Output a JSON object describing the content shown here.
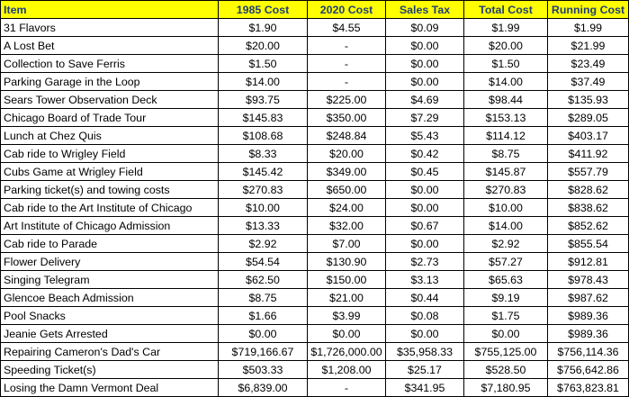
{
  "headers": [
    "Item",
    "1985 Cost",
    "2020 Cost",
    "Sales Tax",
    "Total Cost",
    "Running Cost"
  ],
  "rows": [
    [
      "31 Flavors",
      "$1.90",
      "$4.55",
      "$0.09",
      "$1.99",
      "$1.99"
    ],
    [
      "A Lost Bet",
      "$20.00",
      "-",
      "$0.00",
      "$20.00",
      "$21.99"
    ],
    [
      "Collection to Save Ferris",
      "$1.50",
      "-",
      "$0.00",
      "$1.50",
      "$23.49"
    ],
    [
      "Parking Garage in the Loop",
      "$14.00",
      "-",
      "$0.00",
      "$14.00",
      "$37.49"
    ],
    [
      "Sears Tower Observation Deck",
      "$93.75",
      "$225.00",
      "$4.69",
      "$98.44",
      "$135.93"
    ],
    [
      "Chicago Board of Trade Tour",
      "$145.83",
      "$350.00",
      "$7.29",
      "$153.13",
      "$289.05"
    ],
    [
      "Lunch at Chez Quis",
      "$108.68",
      "$248.84",
      "$5.43",
      "$114.12",
      "$403.17"
    ],
    [
      "Cab ride to Wrigley Field",
      "$8.33",
      "$20.00",
      "$0.42",
      "$8.75",
      "$411.92"
    ],
    [
      "Cubs Game at Wrigley Field",
      "$145.42",
      "$349.00",
      "$0.45",
      "$145.87",
      "$557.79"
    ],
    [
      "Parking ticket(s) and towing costs",
      "$270.83",
      "$650.00",
      "$0.00",
      "$270.83",
      "$828.62"
    ],
    [
      "Cab ride to the Art Institute of Chicago",
      "$10.00",
      "$24.00",
      "$0.00",
      "$10.00",
      "$838.62"
    ],
    [
      "Art Institute of Chicago Admission",
      "$13.33",
      "$32.00",
      "$0.67",
      "$14.00",
      "$852.62"
    ],
    [
      "Cab ride to Parade",
      "$2.92",
      "$7.00",
      "$0.00",
      "$2.92",
      "$855.54"
    ],
    [
      "Flower Delivery",
      "$54.54",
      "$130.90",
      "$2.73",
      "$57.27",
      "$912.81"
    ],
    [
      "Singing Telegram",
      "$62.50",
      "$150.00",
      "$3.13",
      "$65.63",
      "$978.43"
    ],
    [
      "Glencoe Beach Admission",
      "$8.75",
      "$21.00",
      "$0.44",
      "$9.19",
      "$987.62"
    ],
    [
      "Pool Snacks",
      "$1.66",
      "$3.99",
      "$0.08",
      "$1.75",
      "$989.36"
    ],
    [
      "Jeanie Gets Arrested",
      "$0.00",
      "$0.00",
      "$0.00",
      "$0.00",
      "$989.36"
    ],
    [
      "Repairing Cameron's Dad's Car",
      "$719,166.67",
      "$1,726,000.00",
      "$35,958.33",
      "$755,125.00",
      "$756,114.36"
    ],
    [
      "Speeding Ticket(s)",
      "$503.33",
      "$1,208.00",
      "$25.17",
      "$528.50",
      "$756,642.86"
    ],
    [
      "Losing the Damn Vermont Deal",
      "$6,839.00",
      "-",
      "$341.95",
      "$7,180.95",
      "$763,823.81"
    ]
  ]
}
